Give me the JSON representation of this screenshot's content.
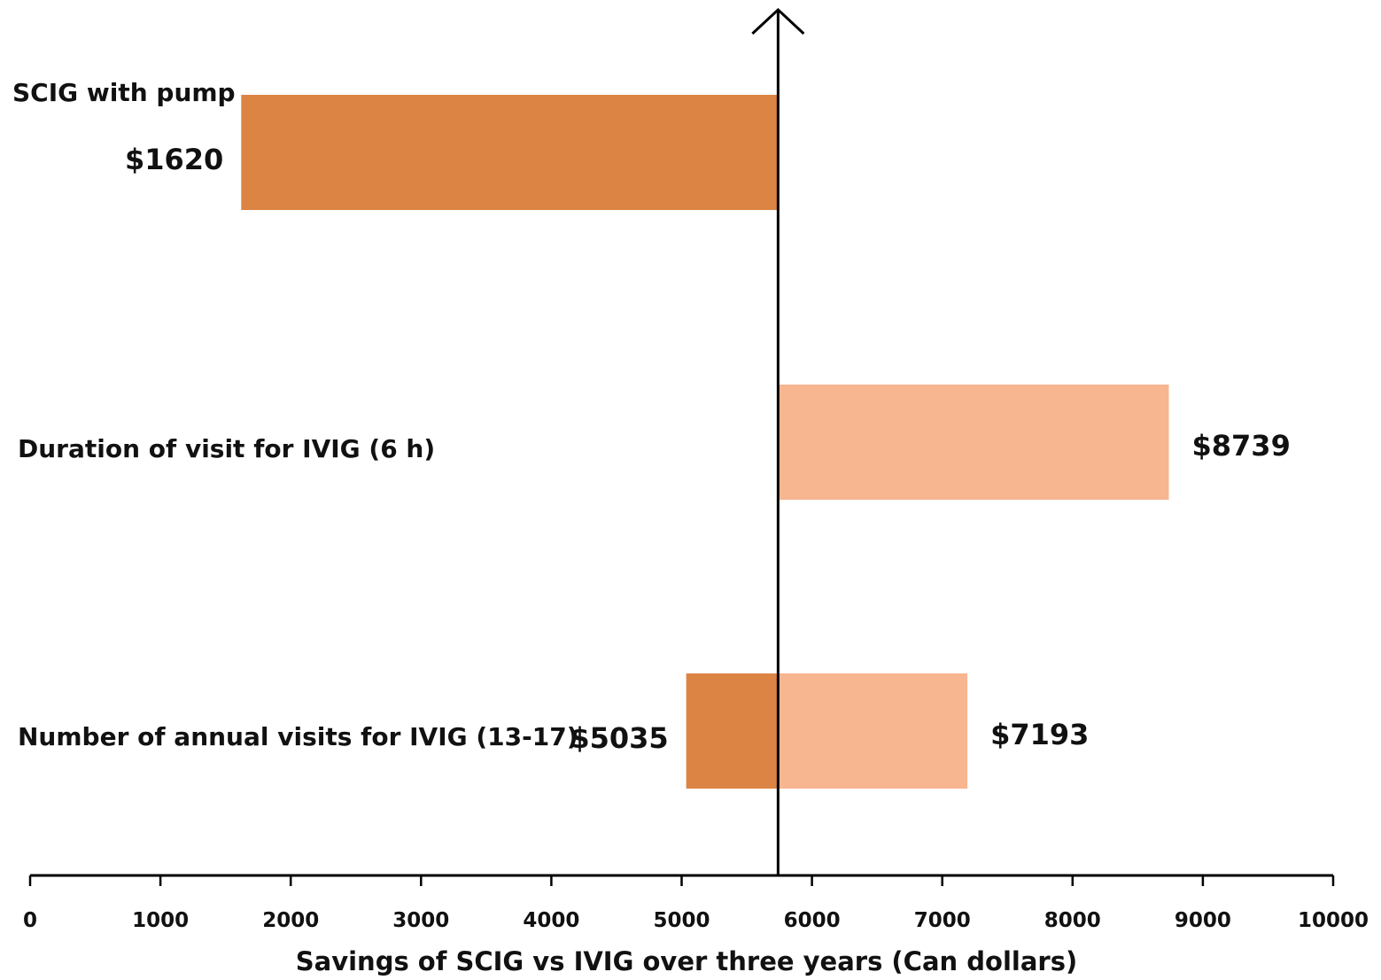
{
  "chart_data": {
    "type": "bar",
    "orientation": "horizontal",
    "subtype": "tornado",
    "title": "",
    "xlabel": "Savings of SCIG vs IVIG over three years (Can dollars)",
    "ylabel": "",
    "xlim": [
      0,
      10000
    ],
    "xticks": [
      "0",
      "1000",
      "2000",
      "3000",
      "4000",
      "5000",
      "6000",
      "7000",
      "8000",
      "9000",
      "10000"
    ],
    "baseline": 5740,
    "grid": false,
    "legend": "none",
    "colors": {
      "low": "#dc8444",
      "high": "#f7b590",
      "axis": "#000000"
    },
    "categories": [
      {
        "label": "SCIG with pump",
        "low": 1620,
        "high": null,
        "low_label": "$1620",
        "high_label": ""
      },
      {
        "label": "Duration of visit for IVIG (6 h)",
        "low": null,
        "high": 8739,
        "low_label": "",
        "high_label": "$8739"
      },
      {
        "label": "Number of annual visits for IVIG (13-17)",
        "low": 5035,
        "high": 7193,
        "low_label": "$5035",
        "high_label": "$7193"
      }
    ]
  }
}
